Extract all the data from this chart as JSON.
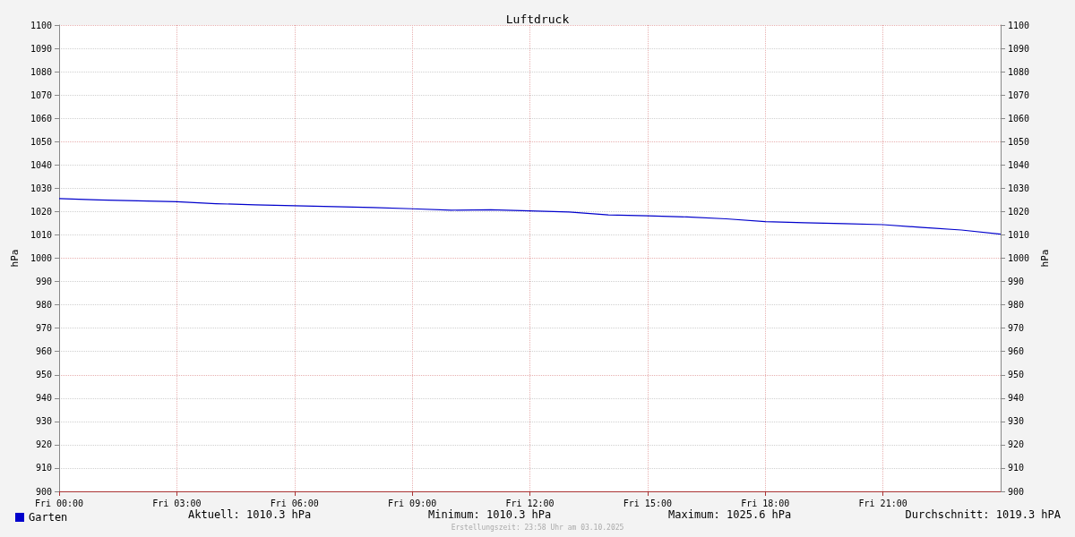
{
  "chart_data": {
    "type": "line",
    "title": "Luftdruck",
    "ylabel": "hPa",
    "y2label": "hPa",
    "x": [
      "2025-10-03T00:00",
      "2025-10-03T01:00",
      "2025-10-03T02:00",
      "2025-10-03T03:00",
      "2025-10-03T04:00",
      "2025-10-03T05:00",
      "2025-10-03T06:00",
      "2025-10-03T07:00",
      "2025-10-03T08:00",
      "2025-10-03T09:00",
      "2025-10-03T10:00",
      "2025-10-03T11:00",
      "2025-10-03T12:00",
      "2025-10-03T13:00",
      "2025-10-03T14:00",
      "2025-10-03T15:00",
      "2025-10-03T16:00",
      "2025-10-03T17:00",
      "2025-10-03T18:00",
      "2025-10-03T19:00",
      "2025-10-03T20:00",
      "2025-10-03T21:00",
      "2025-10-03T22:00",
      "2025-10-03T23:00",
      "2025-10-04T00:00"
    ],
    "series": [
      {
        "name": "Garten",
        "color": "#0000cc",
        "values": [
          1025.6,
          1025.0,
          1024.6,
          1024.2,
          1023.4,
          1022.9,
          1022.5,
          1022.1,
          1021.7,
          1021.2,
          1020.6,
          1020.8,
          1020.3,
          1019.8,
          1018.6,
          1018.2,
          1017.7,
          1016.9,
          1015.7,
          1015.2,
          1014.8,
          1014.4,
          1013.2,
          1012.1,
          1010.3
        ]
      }
    ],
    "xlim": [
      "2025-10-03T00:00",
      "2025-10-04T00:00"
    ],
    "xticks": [
      {
        "value": "2025-10-03T00:00",
        "label": "Fri 00:00"
      },
      {
        "value": "2025-10-03T03:00",
        "label": "Fri 03:00"
      },
      {
        "value": "2025-10-03T06:00",
        "label": "Fri 06:00"
      },
      {
        "value": "2025-10-03T09:00",
        "label": "Fri 09:00"
      },
      {
        "value": "2025-10-03T12:00",
        "label": "Fri 12:00"
      },
      {
        "value": "2025-10-03T15:00",
        "label": "Fri 15:00"
      },
      {
        "value": "2025-10-03T18:00",
        "label": "Fri 18:00"
      },
      {
        "value": "2025-10-03T21:00",
        "label": "Fri 21:00"
      }
    ],
    "ylim": [
      900,
      1100
    ],
    "yticks": [
      900,
      910,
      920,
      930,
      940,
      950,
      960,
      970,
      980,
      990,
      1000,
      1010,
      1020,
      1030,
      1040,
      1050,
      1060,
      1070,
      1080,
      1090,
      1100
    ],
    "y2lim": [
      900,
      1100
    ],
    "y2ticks": [
      900,
      910,
      920,
      930,
      940,
      950,
      960,
      970,
      980,
      990,
      1000,
      1010,
      1020,
      1030,
      1040,
      1050,
      1060,
      1070,
      1080,
      1090,
      1100
    ],
    "grid": true,
    "legend": "bottom left",
    "marker": "none",
    "line_style": "solid",
    "annotations": [
      "Aktuell: 1010.3 hPa",
      "Minimum: 1010.3 hPa",
      "Maximum: 1025.6 hPa",
      "Durchschnitt: 1019.3 hPA",
      "Erstellungszeit: 23:58 Uhr am 03.10.2025"
    ]
  }
}
